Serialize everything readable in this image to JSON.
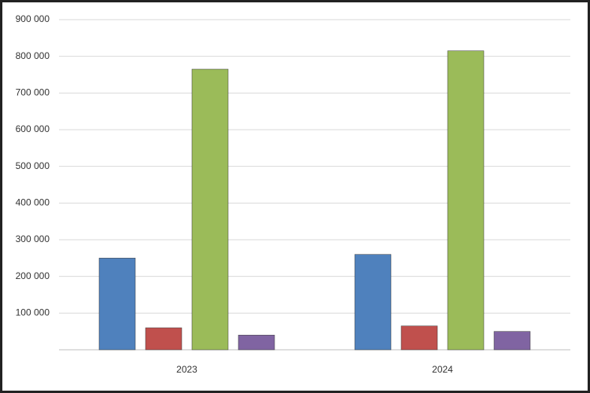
{
  "chart_data": {
    "type": "bar",
    "categories": [
      "2023",
      "2024"
    ],
    "series": [
      {
        "color": "#4f81bd",
        "values": [
          250000,
          260000
        ]
      },
      {
        "color": "#c0504d",
        "values": [
          60000,
          65000
        ]
      },
      {
        "color": "#9bbb59",
        "values": [
          765000,
          815000
        ]
      },
      {
        "color": "#8064a2",
        "values": [
          40000,
          50000
        ]
      }
    ],
    "ylim": [
      0,
      900000
    ],
    "yticks": [
      {
        "value": 100000,
        "label": "100 000"
      },
      {
        "value": 200000,
        "label": "200 000"
      },
      {
        "value": 300000,
        "label": "300 000"
      },
      {
        "value": 400000,
        "label": "400 000"
      },
      {
        "value": 500000,
        "label": "500 000"
      },
      {
        "value": 600000,
        "label": "600 000"
      },
      {
        "value": 700000,
        "label": "700 000"
      },
      {
        "value": 800000,
        "label": "800 000"
      },
      {
        "value": 900000,
        "label": "900 000"
      }
    ],
    "grid": true
  }
}
